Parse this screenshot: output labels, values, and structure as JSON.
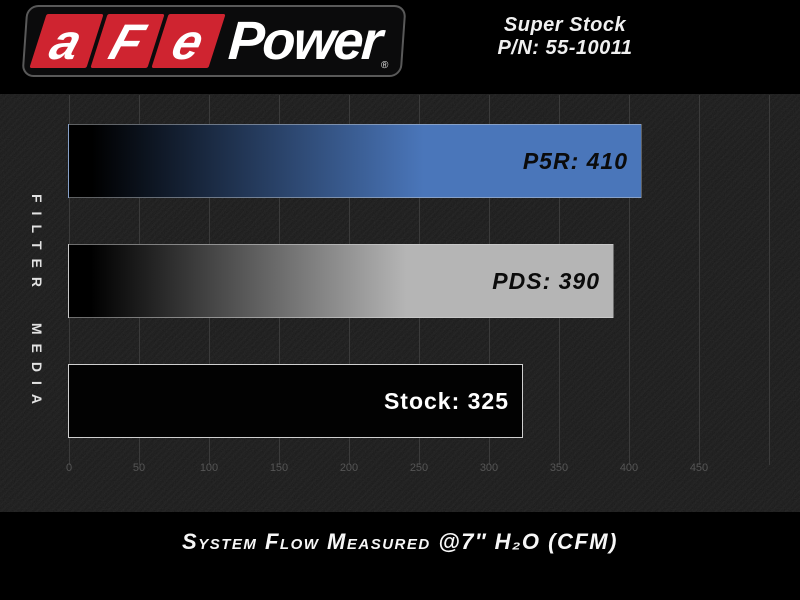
{
  "header": {
    "logo": {
      "brand_segments": [
        "a",
        "F",
        "e"
      ],
      "brand_suffix": "Power",
      "registered_mark": "®",
      "accent_red": "#cf2430"
    },
    "product": {
      "name": "Super Stock",
      "part_number": "P/N: 55-10011"
    }
  },
  "chart_data": {
    "type": "bar",
    "orientation": "horizontal",
    "title": "",
    "categories": [
      "P5R",
      "PDS",
      "Stock"
    ],
    "values": [
      410,
      390,
      325
    ],
    "bar_labels": [
      "P5R: 410",
      "PDS: 390",
      "Stock: 325"
    ],
    "bar_styles": [
      {
        "gradient_start": "#000000",
        "gradient_end": "#4a76ba",
        "label_color": "#0b0b0b",
        "label_italic": true,
        "border_color": "rgba(210,215,220,0.45)"
      },
      {
        "gradient_start": "#000000",
        "gradient_end": "#b5b5b5",
        "label_color": "#0b0b0b",
        "label_italic": true,
        "border_color": "rgba(220,220,220,0.5)"
      },
      {
        "gradient_start": "#020202",
        "gradient_end": "#020202",
        "label_color": "#ffffff",
        "label_italic": false,
        "border_color": "#cfcfcf"
      }
    ],
    "xlabel": "System Flow Measured @7″ H₂O (CFM)",
    "ylabel": "FILTER MEDIA",
    "xlim": [
      0,
      500
    ],
    "xticks": [
      0,
      50,
      100,
      150,
      200,
      250,
      300,
      350,
      400,
      450
    ],
    "grid": true,
    "legend": false,
    "plot_background": "#1a1a1a",
    "grid_color": "#3b3b3b",
    "tick_color": "#555555"
  }
}
